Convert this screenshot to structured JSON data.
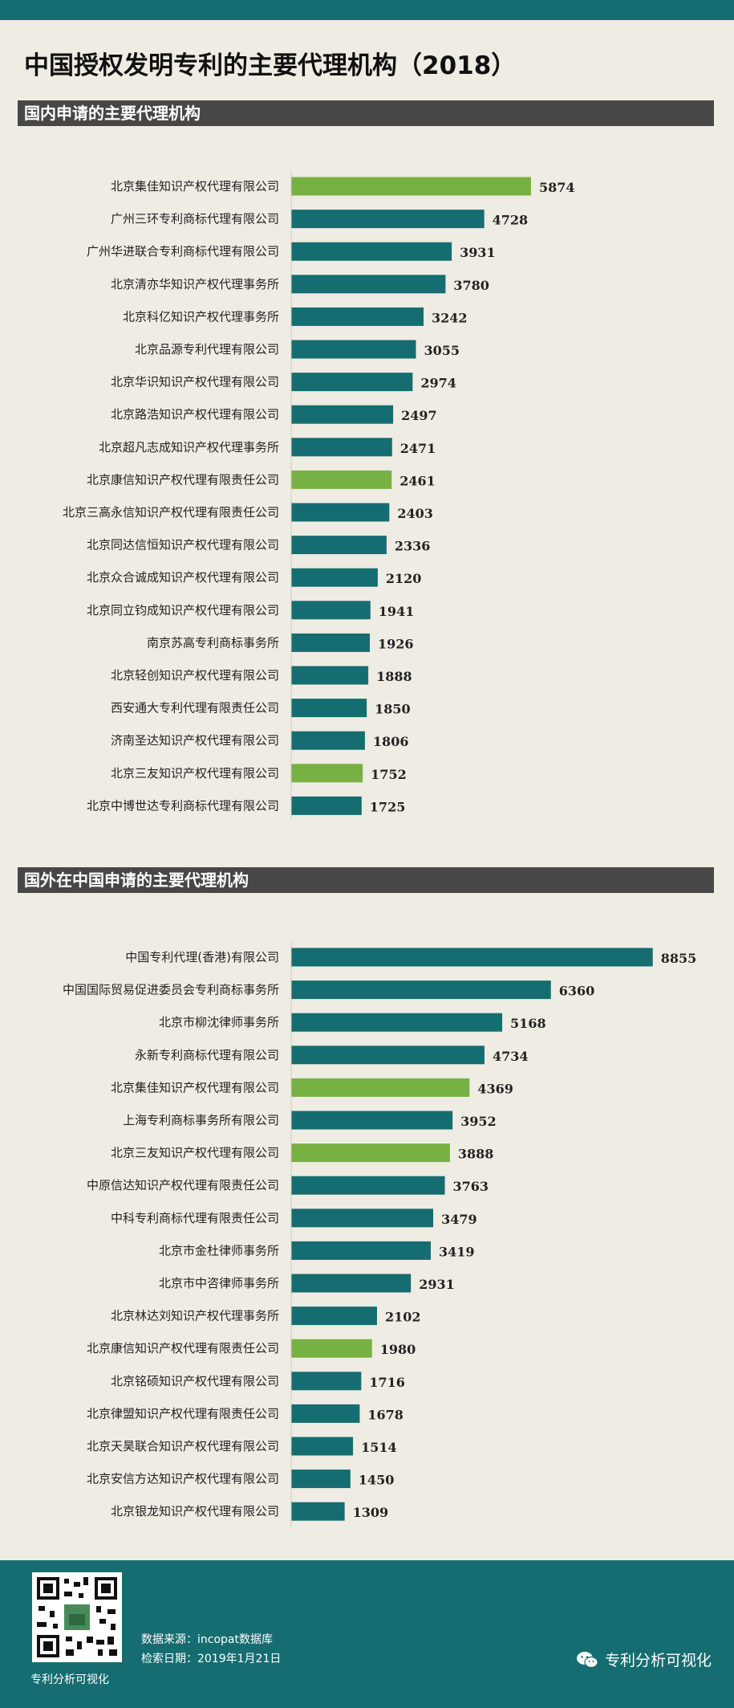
{
  "title": "中国授权发明专利的主要代理机构（2018）",
  "colors": {
    "teal": "#166d71",
    "green": "#78b143",
    "header": "#474747",
    "background": "#efece3"
  },
  "sections": [
    {
      "title": "国内申请的主要代理机构"
    },
    {
      "title": "国外在中国申请的主要代理机构"
    }
  ],
  "chart_data": [
    {
      "type": "bar",
      "orientation": "horizontal",
      "title": "国内申请的主要代理机构",
      "categories": [
        "北京集佳知识产权代理有限公司",
        "广州三环专利商标代理有限公司",
        "广州华进联合专利商标代理有限公司",
        "北京清亦华知识产权代理事务所",
        "北京科亿知识产权代理事务所",
        "北京品源专利代理有限公司",
        "北京华识知识产权代理有限公司",
        "北京路浩知识产权代理有限公司",
        "北京超凡志成知识产权代理事务所",
        "北京康信知识产权代理有限责任公司",
        "北京三高永信知识产权代理有限责任公司",
        "北京同达信恒知识产权代理有限公司",
        "北京众合诚成知识产权代理有限公司",
        "北京同立钧成知识产权代理有限公司",
        "南京苏高专利商标事务所",
        "北京轻创知识产权代理有限公司",
        "西安通大专利代理有限责任公司",
        "济南圣达知识产权代理有限公司",
        "北京三友知识产权代理有限公司",
        "北京中博世达专利商标代理有限公司"
      ],
      "values": [
        5874,
        4728,
        3931,
        3780,
        3242,
        3055,
        2974,
        2497,
        2471,
        2461,
        2403,
        2336,
        2120,
        1941,
        1926,
        1888,
        1850,
        1806,
        1752,
        1725
      ],
      "highlight": [
        true,
        false,
        false,
        false,
        false,
        false,
        false,
        false,
        false,
        true,
        false,
        false,
        false,
        false,
        false,
        false,
        false,
        false,
        true,
        false
      ]
    },
    {
      "type": "bar",
      "orientation": "horizontal",
      "title": "国外在中国申请的主要代理机构",
      "categories": [
        "中国专利代理(香港)有限公司",
        "中国国际贸易促进委员会专利商标事务所",
        "北京市柳沈律师事务所",
        "永新专利商标代理有限公司",
        "北京集佳知识产权代理有限公司",
        "上海专利商标事务所有限公司",
        "北京三友知识产权代理有限公司",
        "中原信达知识产权代理有限责任公司",
        "中科专利商标代理有限责任公司",
        "北京市金杜律师事务所",
        "北京市中咨律师事务所",
        "北京林达刘知识产权代理事务所",
        "北京康信知识产权代理有限责任公司",
        "北京铭硕知识产权代理有限公司",
        "北京律盟知识产权代理有限责任公司",
        "北京天昊联合知识产权代理有限公司",
        "北京安信方达知识产权代理有限公司",
        "北京银龙知识产权代理有限公司"
      ],
      "values": [
        8855,
        6360,
        5168,
        4734,
        4369,
        3952,
        3888,
        3763,
        3479,
        3419,
        2931,
        2102,
        1980,
        1716,
        1678,
        1514,
        1450,
        1309
      ],
      "highlight": [
        false,
        false,
        false,
        false,
        true,
        false,
        true,
        false,
        false,
        false,
        false,
        false,
        true,
        false,
        false,
        false,
        false,
        false
      ]
    }
  ],
  "footer": {
    "qr_caption": "专利分析可视化",
    "source": "数据来源：incopat数据库",
    "date": "检索日期：2019年1月21日",
    "brand": "专利分析可视化",
    "brand_icon": "wechat-icon"
  }
}
